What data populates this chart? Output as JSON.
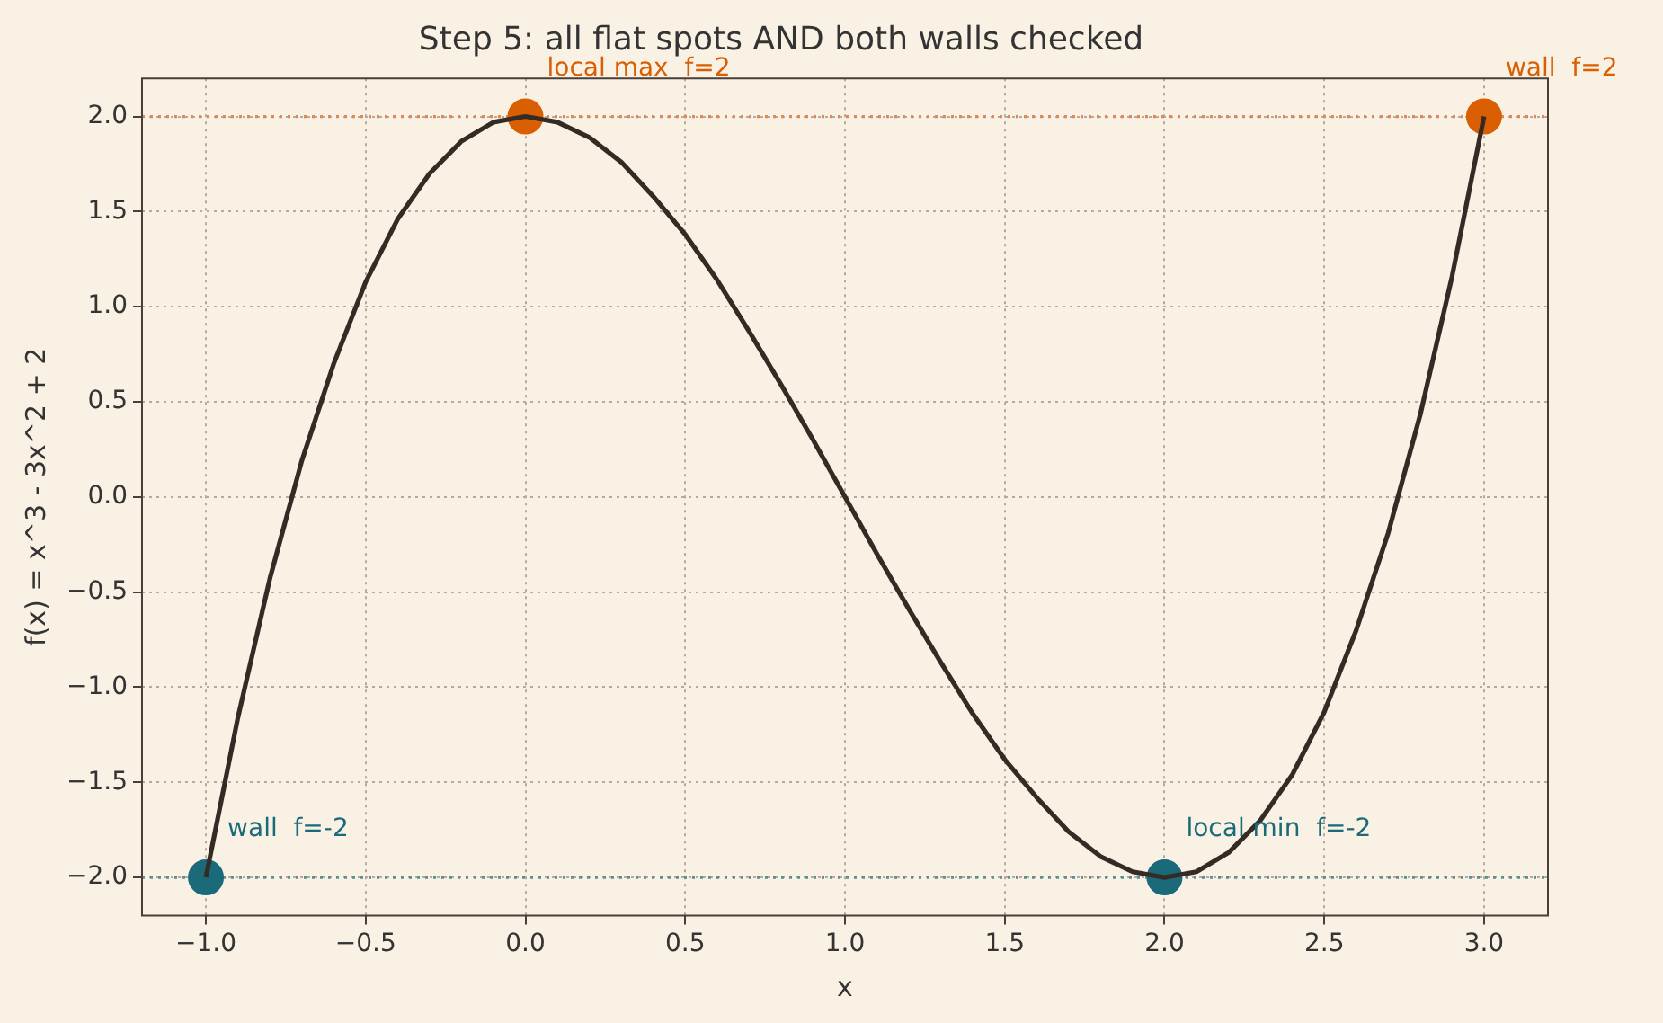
{
  "chart_data": {
    "type": "line",
    "title": "Step 5: all flat spots AND both walls checked",
    "xlabel": "x",
    "ylabel": "f(x) = x^3 - 3x^2 + 2",
    "xlim": [
      -1.2,
      3.2
    ],
    "ylim": [
      -2.2,
      2.2
    ],
    "xticks": [
      {
        "value": -1,
        "label": "−1.0"
      },
      {
        "value": -0.5,
        "label": "−0.5"
      },
      {
        "value": 0,
        "label": "0.0"
      },
      {
        "value": 0.5,
        "label": "0.5"
      },
      {
        "value": 1,
        "label": "1.0"
      },
      {
        "value": 1.5,
        "label": "1.5"
      },
      {
        "value": 2,
        "label": "2.0"
      },
      {
        "value": 2.5,
        "label": "2.5"
      },
      {
        "value": 3,
        "label": "3.0"
      }
    ],
    "yticks": [
      {
        "value": -2,
        "label": "−2.0"
      },
      {
        "value": -1.5,
        "label": "−1.5"
      },
      {
        "value": -1,
        "label": "−1.0"
      },
      {
        "value": -0.5,
        "label": "−0.5"
      },
      {
        "value": 0,
        "label": "0.0"
      },
      {
        "value": 0.5,
        "label": "0.5"
      },
      {
        "value": 1,
        "label": "1.0"
      },
      {
        "value": 1.5,
        "label": "1.5"
      },
      {
        "value": 2,
        "label": "2.0"
      }
    ],
    "grid": true,
    "legend": false,
    "line_style": "solid",
    "series": [
      {
        "type": "line",
        "marker": "none",
        "color": "#352b25",
        "x": [
          -1,
          -0.9,
          -0.8,
          -0.7,
          -0.6,
          -0.5,
          -0.4,
          -0.3,
          -0.2,
          -0.1,
          0,
          0.1,
          0.2,
          0.3,
          0.4,
          0.5,
          0.6,
          0.7,
          0.8,
          0.9,
          1,
          1.1,
          1.2,
          1.3,
          1.4,
          1.5,
          1.6,
          1.7,
          1.8,
          1.9,
          2,
          2.1,
          2.2,
          2.3,
          2.4,
          2.5,
          2.6,
          2.7,
          2.8,
          2.9,
          3
        ],
        "values": [
          -2,
          -1.16,
          -0.43,
          0.19,
          0.7,
          1.13,
          1.46,
          1.7,
          1.87,
          1.97,
          2,
          1.97,
          1.89,
          1.76,
          1.58,
          1.38,
          1.14,
          0.87,
          0.59,
          0.3,
          0,
          -0.3,
          -0.59,
          -0.87,
          -1.14,
          -1.38,
          -1.58,
          -1.76,
          -1.89,
          -1.97,
          -2,
          -1.97,
          -1.87,
          -1.7,
          -1.46,
          -1.13,
          -0.7,
          -0.19,
          0.43,
          1.16,
          2
        ]
      },
      {
        "type": "scatter",
        "marker": "circle",
        "color": "#d95f02",
        "x": [
          0,
          3
        ],
        "values": [
          2,
          2
        ]
      },
      {
        "type": "scatter",
        "marker": "circle",
        "color": "#1b6a7a",
        "x": [
          -1,
          2
        ],
        "values": [
          -2,
          -2
        ]
      }
    ],
    "ref_lines": [
      {
        "axis": "y",
        "value": 2,
        "color": "#e0875a",
        "line_style": "dotted"
      },
      {
        "axis": "y",
        "value": -2,
        "color": "#5a8f99",
        "line_style": "dotted"
      }
    ],
    "annotations": [
      {
        "text": "local max  f=2",
        "x": 0,
        "y": 2
      },
      {
        "text": "wall  f=2",
        "x": 3,
        "y": 2
      },
      {
        "text": "wall  f=-2",
        "x": -1,
        "y": -2
      },
      {
        "text": "local min  f=-2",
        "x": 2,
        "y": -2
      }
    ]
  }
}
